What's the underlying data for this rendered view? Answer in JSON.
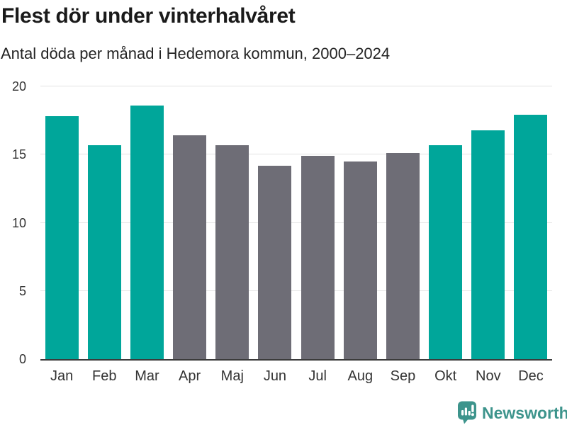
{
  "chart_data": {
    "type": "bar",
    "title": "Flest dör under vinterhalvåret",
    "subtitle": "Antal döda per månad i Hedemora kommun, 2000–2024",
    "categories": [
      "Jan",
      "Feb",
      "Mar",
      "Apr",
      "Maj",
      "Jun",
      "Jul",
      "Aug",
      "Sep",
      "Okt",
      "Nov",
      "Dec"
    ],
    "values": [
      17.8,
      15.7,
      18.6,
      16.4,
      15.7,
      14.2,
      14.9,
      14.5,
      15.1,
      15.7,
      16.8,
      17.9
    ],
    "bar_color_roles": [
      "winter",
      "winter",
      "winter",
      "summer",
      "summer",
      "summer",
      "summer",
      "summer",
      "summer",
      "winter",
      "winter",
      "winter"
    ],
    "colors": {
      "winter": "#00a69a",
      "summer": "#6e6d76"
    },
    "xlabel": "",
    "ylabel": "",
    "ylim": [
      0,
      20
    ],
    "yticks": [
      0,
      5,
      10,
      15,
      20
    ],
    "grid": true,
    "legend": false,
    "axis_line_color": "#3b3b3b",
    "gridline_color": "#e3e3e3"
  },
  "footer": {
    "brand": "Newsworthy",
    "brand_color": "#3d948c",
    "logo_icon": "bar-chart-speech-bubble-icon"
  }
}
